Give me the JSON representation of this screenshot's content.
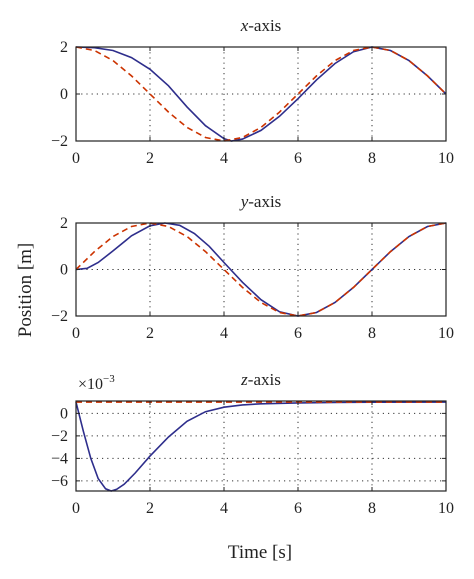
{
  "figure": {
    "ylabel": "Position [m]",
    "xlabel": "Time [s]",
    "colors": {
      "solid": "#2e2e8c",
      "dashed": "#cc3300"
    }
  },
  "chart_data": [
    {
      "type": "line",
      "title_italic": "x",
      "title_rest": "-axis",
      "xlim": [
        0,
        10
      ],
      "ylim": [
        -2,
        2
      ],
      "xticks": [
        0,
        2,
        4,
        6,
        8,
        10
      ],
      "yticks": [
        -2,
        0,
        2
      ],
      "xtick_labels": [
        "0",
        "2",
        "4",
        "6",
        "8",
        "10"
      ],
      "ytick_labels": [
        "−2",
        "0",
        "2"
      ],
      "grid": true,
      "series": [
        {
          "style": "solid",
          "x": [
            0,
            0.5,
            1,
            1.5,
            2,
            2.5,
            3,
            3.5,
            4,
            4.2,
            4.5,
            5,
            5.5,
            6,
            6.5,
            7,
            7.5,
            8,
            8.5,
            9,
            9.5,
            10
          ],
          "y": [
            2,
            1.97,
            1.85,
            1.55,
            1.05,
            0.35,
            -0.55,
            -1.35,
            -1.9,
            -2,
            -1.92,
            -1.55,
            -0.95,
            -0.2,
            0.6,
            1.3,
            1.8,
            2,
            1.85,
            1.42,
            0.77,
            0
          ]
        },
        {
          "style": "dashed",
          "x": [
            0,
            0.5,
            1,
            1.5,
            2,
            2.5,
            3,
            3.5,
            4,
            4.5,
            5,
            5.5,
            6,
            6.5,
            7,
            7.5,
            8,
            8.5,
            9,
            9.5,
            10
          ],
          "y": [
            2,
            1.85,
            1.42,
            0.77,
            0,
            -0.77,
            -1.42,
            -1.85,
            -2,
            -1.85,
            -1.42,
            -0.77,
            0,
            0.77,
            1.42,
            1.85,
            2,
            1.85,
            1.42,
            0.77,
            0
          ]
        }
      ]
    },
    {
      "type": "line",
      "title_italic": "y",
      "title_rest": "-axis",
      "xlim": [
        0,
        10
      ],
      "ylim": [
        -2,
        2
      ],
      "xticks": [
        0,
        2,
        4,
        6,
        8,
        10
      ],
      "yticks": [
        -2,
        0,
        2
      ],
      "xtick_labels": [
        "0",
        "2",
        "4",
        "6",
        "8",
        "10"
      ],
      "ytick_labels": [
        "−2",
        "0",
        "2"
      ],
      "grid": true,
      "series": [
        {
          "style": "solid",
          "x": [
            0,
            0.3,
            0.6,
            1,
            1.5,
            2,
            2.4,
            2.8,
            3.2,
            3.6,
            4,
            4.5,
            5,
            5.5,
            6,
            6.5,
            7,
            7.5,
            8,
            8.5,
            9,
            9.5,
            10
          ],
          "y": [
            0,
            0.05,
            0.3,
            0.8,
            1.45,
            1.88,
            2,
            1.9,
            1.55,
            1.0,
            0.3,
            -0.55,
            -1.3,
            -1.82,
            -2,
            -1.85,
            -1.42,
            -0.77,
            0,
            0.77,
            1.42,
            1.85,
            2
          ]
        },
        {
          "style": "dashed",
          "x": [
            0,
            0.5,
            1,
            1.5,
            2,
            2.5,
            3,
            3.5,
            4,
            4.5,
            5,
            5.5,
            6,
            6.5,
            7,
            7.5,
            8,
            8.5,
            9,
            9.5,
            10
          ],
          "y": [
            0,
            0.77,
            1.42,
            1.85,
            2,
            1.85,
            1.42,
            0.77,
            0,
            -0.77,
            -1.42,
            -1.85,
            -2,
            -1.85,
            -1.42,
            -0.77,
            0,
            0.77,
            1.42,
            1.85,
            2
          ]
        }
      ]
    },
    {
      "type": "line",
      "title_italic": "z",
      "title_rest": "-axis",
      "multiplier_base": "×10",
      "multiplier_exp": "−3",
      "xlim": [
        0,
        10
      ],
      "ylim": [
        -6.9,
        1.1
      ],
      "xticks": [
        0,
        2,
        4,
        6,
        8,
        10
      ],
      "yticks": [
        0,
        -2,
        -4,
        -6
      ],
      "xtick_labels": [
        "0",
        "2",
        "4",
        "6",
        "8",
        "10"
      ],
      "ytick_labels": [
        "0",
        "−2",
        "−4",
        "−6"
      ],
      "grid": true,
      "series": [
        {
          "style": "solid",
          "x": [
            0,
            0.2,
            0.4,
            0.6,
            0.8,
            0.95,
            1.1,
            1.3,
            1.6,
            2,
            2.5,
            3,
            3.5,
            4,
            4.5,
            5,
            6,
            7,
            8,
            10
          ],
          "y": [
            1,
            -1.6,
            -4.0,
            -5.8,
            -6.7,
            -6.9,
            -6.75,
            -6.3,
            -5.3,
            -3.8,
            -2.1,
            -0.7,
            0.15,
            0.55,
            0.75,
            0.85,
            0.93,
            0.97,
            0.99,
            1
          ]
        },
        {
          "style": "dashed",
          "x": [
            0,
            10
          ],
          "y": [
            1,
            1
          ]
        }
      ]
    }
  ]
}
